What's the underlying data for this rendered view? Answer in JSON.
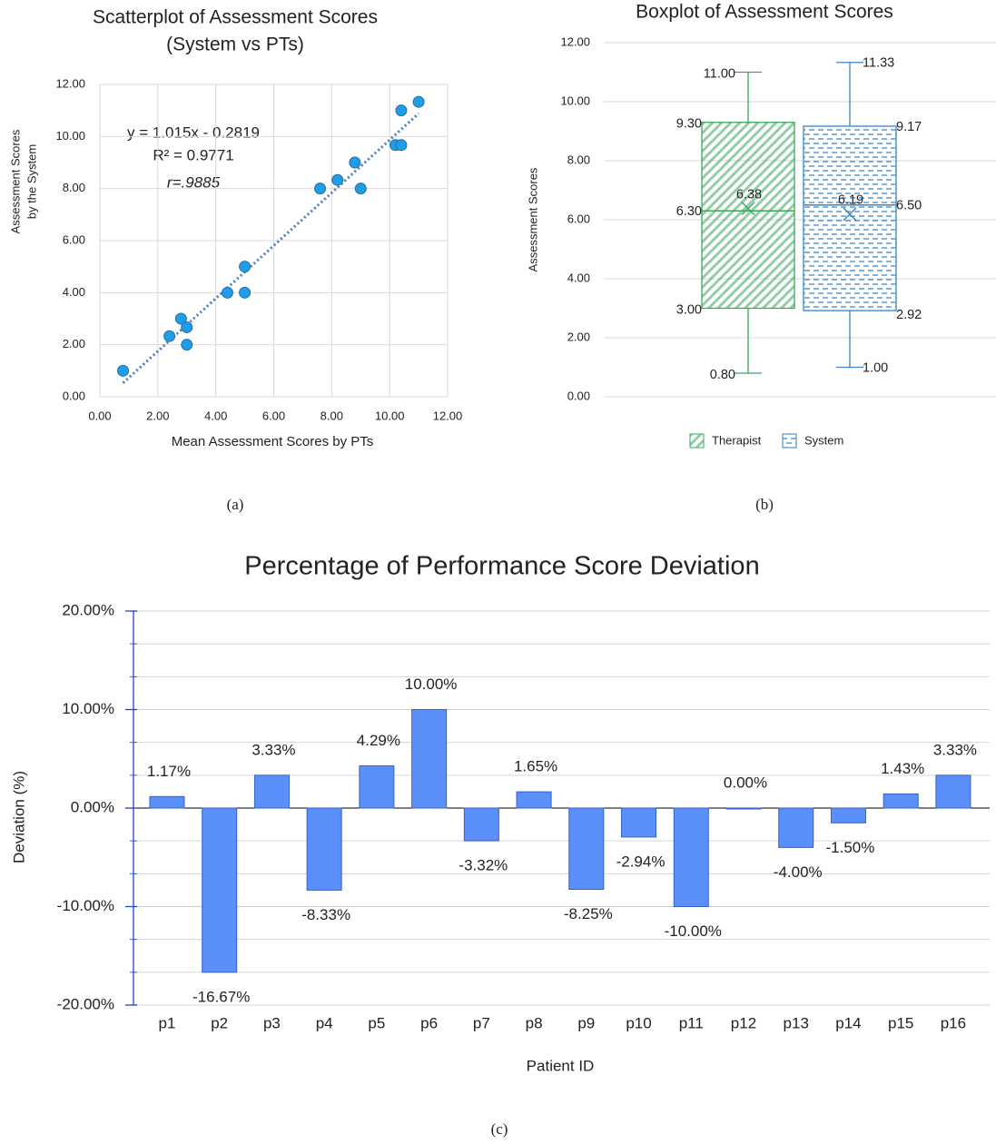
{
  "chart_data": [
    {
      "type": "scatter",
      "title": "Scatterplot of Assessment Scores",
      "subtitle": "(System vs PTs)",
      "xlabel": "Mean Assessment Scores by PTs",
      "ylabel": [
        "Assessment Scores",
        "by the System"
      ],
      "x": [
        0.8,
        2.4,
        2.8,
        3.0,
        3.0,
        4.4,
        5.0,
        5.0,
        7.6,
        8.2,
        8.8,
        9.0,
        10.2,
        10.4,
        10.4,
        11.0
      ],
      "y": [
        1.0,
        2.33,
        3.0,
        2.67,
        2.0,
        4.0,
        5.0,
        4.0,
        8.0,
        8.33,
        9.0,
        8.0,
        9.67,
        9.67,
        11.0,
        11.33
      ],
      "color": "#1e9ee6",
      "trendline": {
        "slope": 1.015,
        "intercept": -0.2819,
        "color": "#4a7ebb"
      },
      "annotations": [
        "y = 1.015x - 0.2819",
        "R² = 0.9771",
        "r=.9885"
      ],
      "xlim": [
        0,
        12
      ],
      "ylim": [
        0,
        12
      ],
      "xticks": [
        {
          "value": 0,
          "label": "0.00"
        },
        {
          "value": 2,
          "label": "2.00"
        },
        {
          "value": 4,
          "label": "4.00"
        },
        {
          "value": 6,
          "label": "6.00"
        },
        {
          "value": 8,
          "label": "8.00"
        },
        {
          "value": 10,
          "label": "10.00"
        },
        {
          "value": 12,
          "label": "12.00"
        }
      ],
      "yticks": [
        {
          "value": 0,
          "label": "0.00"
        },
        {
          "value": 2,
          "label": "2.00"
        },
        {
          "value": 4,
          "label": "4.00"
        },
        {
          "value": 6,
          "label": "6.00"
        },
        {
          "value": 8,
          "label": "8.00"
        },
        {
          "value": 10,
          "label": "10.00"
        },
        {
          "value": 12,
          "label": "12.00"
        }
      ],
      "grid": true,
      "caption": "(a)"
    },
    {
      "type": "box",
      "title": "Boxplot of Assessment Scores",
      "ylabel": "Assessment Scores",
      "series": [
        {
          "name": "Therapist",
          "color": "#3aa85c",
          "hatch": "diagonal",
          "stats": {
            "min": 0.8,
            "q1": 3.0,
            "median": 6.3,
            "q3": 9.3,
            "max": 11.0,
            "mean": 6.38
          },
          "stat_labels": {
            "min": "0.80",
            "q1": "3.00",
            "median": "6.30",
            "q3": "9.30",
            "max": "11.00",
            "mean": "6.38"
          }
        },
        {
          "name": "System",
          "color": "#3a84c4",
          "hatch": "dashed",
          "stats": {
            "min": 1.0,
            "q1": 2.92,
            "median": 6.5,
            "q3": 9.17,
            "max": 11.33,
            "mean": 6.19
          },
          "stat_labels": {
            "min": "1.00",
            "q1": "2.92",
            "median": "6.50",
            "q3": "9.17",
            "max": "11.33",
            "mean": "6.19"
          }
        }
      ],
      "ylim": [
        0,
        12
      ],
      "yticks": [
        {
          "value": 0,
          "label": "0.00"
        },
        {
          "value": 2,
          "label": "2.00"
        },
        {
          "value": 4,
          "label": "4.00"
        },
        {
          "value": 6,
          "label": "6.00"
        },
        {
          "value": 8,
          "label": "8.00"
        },
        {
          "value": 10,
          "label": "10.00"
        },
        {
          "value": 12,
          "label": "12.00"
        }
      ],
      "grid": true,
      "legend": "bottom",
      "caption": "(b)"
    },
    {
      "type": "bar",
      "title": "Percentage of Performance Score Deviation",
      "xlabel": "Patient ID",
      "ylabel": "Deviation (%)",
      "categories": [
        "p1",
        "p2",
        "p3",
        "p4",
        "p5",
        "p6",
        "p7",
        "p8",
        "p9",
        "p10",
        "p11",
        "p12",
        "p13",
        "p14",
        "p15",
        "p16"
      ],
      "values": [
        1.17,
        -16.67,
        3.33,
        -8.33,
        4.29,
        10.0,
        -3.32,
        1.65,
        -8.25,
        -2.94,
        -10.0,
        0.0,
        -4.0,
        -1.5,
        1.43,
        3.33
      ],
      "value_labels": [
        "1.17%",
        "-16.67%",
        "3.33%",
        "-8.33%",
        "4.29%",
        "10.00%",
        "-3.32%",
        "1.65%",
        "-8.25%",
        "-2.94%",
        "-10.00%",
        "0.00%",
        "-4.00%",
        "-1.50%",
        "1.43%",
        "3.33%"
      ],
      "color": "#5b8ff9",
      "ylim": [
        -20,
        20
      ],
      "yticks": [
        {
          "value": -20,
          "label": "-20.00%"
        },
        {
          "value": -10,
          "label": "-10.00%"
        },
        {
          "value": 0,
          "label": "0.00%"
        },
        {
          "value": 10,
          "label": "10.00%"
        },
        {
          "value": 20,
          "label": "20.00%"
        }
      ],
      "minor_yticks": [
        -16.67,
        -13.33,
        -6.67,
        -3.33,
        3.33,
        6.67,
        13.33,
        16.67
      ],
      "grid": true,
      "caption": "(c)"
    }
  ]
}
